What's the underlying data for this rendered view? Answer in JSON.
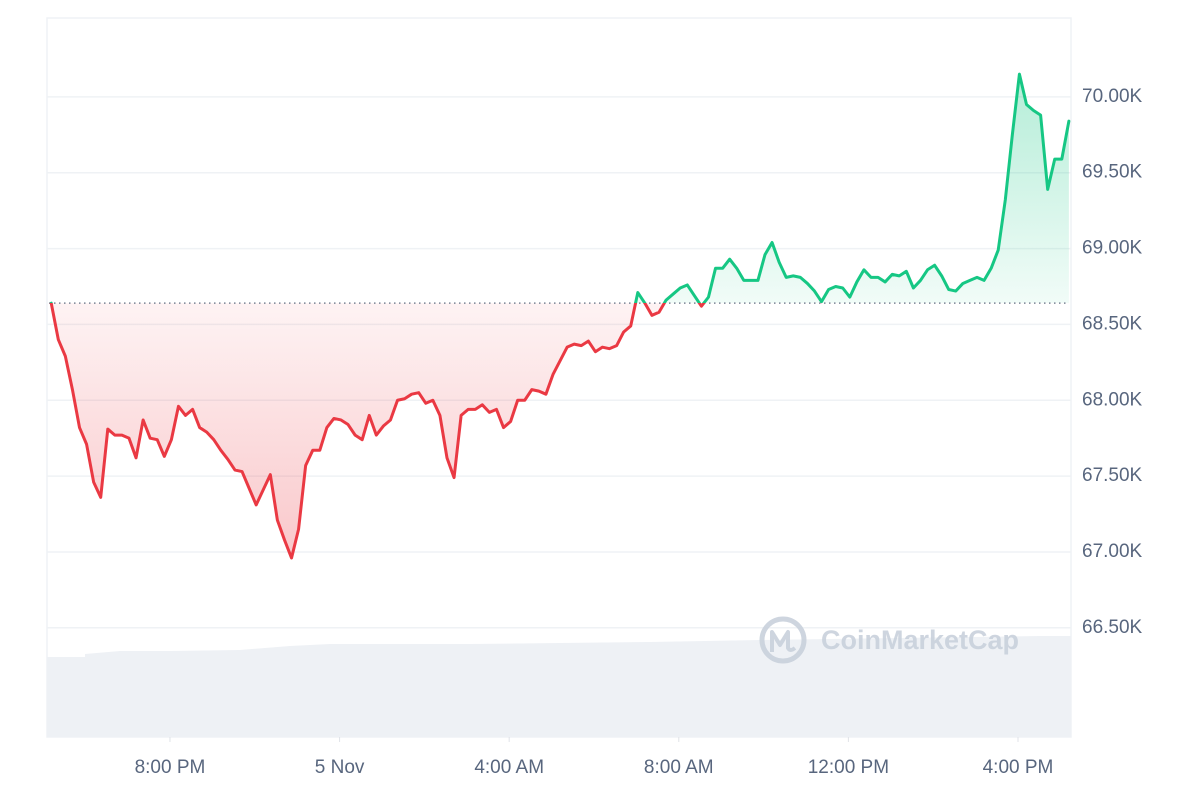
{
  "chart_data": {
    "type": "line",
    "watermark": "CoinMarketCap",
    "up_color": "#16c784",
    "down_color": "#ea3943",
    "baseline": 68640,
    "grid": true,
    "xlim": [
      1026,
      2475
    ],
    "xticks": [
      {
        "value": 1200,
        "label": "8:00 PM"
      },
      {
        "value": 1440,
        "label": "5 Nov"
      },
      {
        "value": 1680,
        "label": "4:00 AM"
      },
      {
        "value": 1920,
        "label": "8:00 AM"
      },
      {
        "value": 2160,
        "label": "12:00 PM"
      },
      {
        "value": 2400,
        "label": "4:00 PM"
      }
    ],
    "ylim": [
      65780,
      70520
    ],
    "yticks": [
      {
        "value": 66500,
        "label": "66.50K"
      },
      {
        "value": 67000,
        "label": "67.00K"
      },
      {
        "value": 67500,
        "label": "67.50K"
      },
      {
        "value": 68000,
        "label": "68.00K"
      },
      {
        "value": 68500,
        "label": "68.50K"
      },
      {
        "value": 69000,
        "label": "69.00K"
      },
      {
        "value": 69500,
        "label": "69.50K"
      },
      {
        "value": 70000,
        "label": "70.00K"
      }
    ],
    "x": [
      1032,
      1042,
      1052,
      1062,
      1072,
      1082,
      1092,
      1102,
      1112,
      1122,
      1132,
      1142,
      1152,
      1162,
      1172,
      1182,
      1192,
      1202,
      1212,
      1222,
      1232,
      1242,
      1252,
      1262,
      1272,
      1282,
      1292,
      1302,
      1312,
      1322,
      1332,
      1342,
      1352,
      1362,
      1372,
      1382,
      1392,
      1402,
      1412,
      1422,
      1432,
      1442,
      1452,
      1462,
      1472,
      1482,
      1492,
      1502,
      1512,
      1522,
      1532,
      1542,
      1552,
      1562,
      1572,
      1582,
      1592,
      1602,
      1612,
      1622,
      1632,
      1642,
      1652,
      1662,
      1672,
      1682,
      1692,
      1702,
      1712,
      1722,
      1732,
      1742,
      1752,
      1762,
      1772,
      1782,
      1792,
      1802,
      1812,
      1822,
      1832,
      1842,
      1852,
      1862,
      1872,
      1882,
      1892,
      1902,
      1912,
      1922,
      1932,
      1942,
      1952,
      1962,
      1972,
      1982,
      1992,
      2002,
      2012,
      2022,
      2032,
      2042,
      2052,
      2062,
      2072,
      2082,
      2092,
      2102,
      2112,
      2122,
      2132,
      2142,
      2152,
      2162,
      2172,
      2182,
      2192,
      2202,
      2212,
      2222,
      2232,
      2242,
      2252,
      2262,
      2272,
      2282,
      2292,
      2302,
      2312,
      2322,
      2332,
      2342,
      2352,
      2362,
      2372,
      2382,
      2392,
      2402,
      2412,
      2422,
      2432,
      2442,
      2452,
      2462,
      2472
    ],
    "series": [
      {
        "values": [
          68640,
          68400,
          68290,
          68070,
          67820,
          67710,
          67460,
          67360,
          67810,
          67770,
          67770,
          67750,
          67620,
          67870,
          67750,
          67740,
          67630,
          67740,
          67960,
          67900,
          67940,
          67820,
          67790,
          67740,
          67670,
          67610,
          67540,
          67530,
          67420,
          67310,
          67410,
          67510,
          67210,
          67080,
          66960,
          67150,
          67570,
          67670,
          67670,
          67820,
          67880,
          67870,
          67840,
          67770,
          67740,
          67900,
          67770,
          67830,
          67870,
          68000,
          68010,
          68040,
          68050,
          67980,
          68000,
          67900,
          67620,
          67490,
          67900,
          67940,
          67940,
          67970,
          67920,
          67940,
          67820,
          67860,
          68000,
          68000,
          68070,
          68060,
          68040,
          68170,
          68260,
          68350,
          68370,
          68360,
          68390,
          68320,
          68350,
          68340,
          68360,
          68450,
          68490,
          68710,
          68640,
          68560,
          68580,
          68660,
          68700,
          68740,
          68760,
          68690,
          68620,
          68680,
          68870,
          68870,
          68930,
          68870,
          68790,
          68790,
          68790,
          68960,
          69040,
          68910,
          68810,
          68820,
          68810,
          68770,
          68720,
          68650,
          68730,
          68750,
          68740,
          68680,
          68780,
          68860,
          68810,
          68810,
          68780,
          68830,
          68820,
          68850,
          68740,
          68790,
          68860,
          68890,
          68820,
          68730,
          68720,
          68770,
          68790,
          68810,
          68790,
          68870,
          68990,
          69320,
          69750,
          70150,
          69950,
          69910,
          69880,
          69390,
          69590,
          69590,
          69840
        ]
      }
    ]
  }
}
